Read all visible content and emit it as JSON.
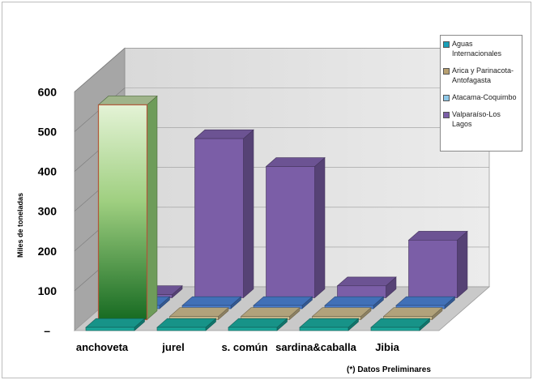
{
  "chart_data": {
    "type": "bar",
    "ylabel": "Miles de toneladas",
    "ytick_labels": [
      "–",
      "100",
      "200",
      "300",
      "400",
      "500",
      "600"
    ],
    "ylim": [
      0,
      600
    ],
    "categories": [
      "anchoveta",
      "jurel",
      "s. común",
      "sardina&caballa",
      "Jibia"
    ],
    "series": [
      {
        "name": "Aguas Internacionales",
        "color": "#1aa79a",
        "values": [
          0,
          0,
          0,
          0,
          0
        ]
      },
      {
        "name": "Arica y Parinacota-Antofagasta",
        "color": "#c9b88c",
        "values": [
          540,
          5,
          0,
          0,
          0
        ]
      },
      {
        "name": "Atacama-Coquimbo",
        "color": "#4a7fd0",
        "values": [
          0,
          0,
          0,
          0,
          0
        ]
      },
      {
        "name": "Valparaiso-Los Lagos",
        "color": "#7b5ea7",
        "values": [
          5,
          400,
          330,
          30,
          145
        ]
      }
    ],
    "legend_position": "top-right",
    "grid": true
  },
  "legend_items": [
    {
      "label": "Aguas Internacionales",
      "color": "#1aa0b8"
    },
    {
      "label": "Arica y Parinacota-Antofagasta",
      "color": "#b8a070"
    },
    {
      "label": "Atacama-Coquimbo",
      "color": "#8ec8e8"
    },
    {
      "label": "Valparaíso-Los Lagos",
      "color": "#7b5ea7"
    }
  ],
  "footnote": "(*) Datos Preliminares"
}
